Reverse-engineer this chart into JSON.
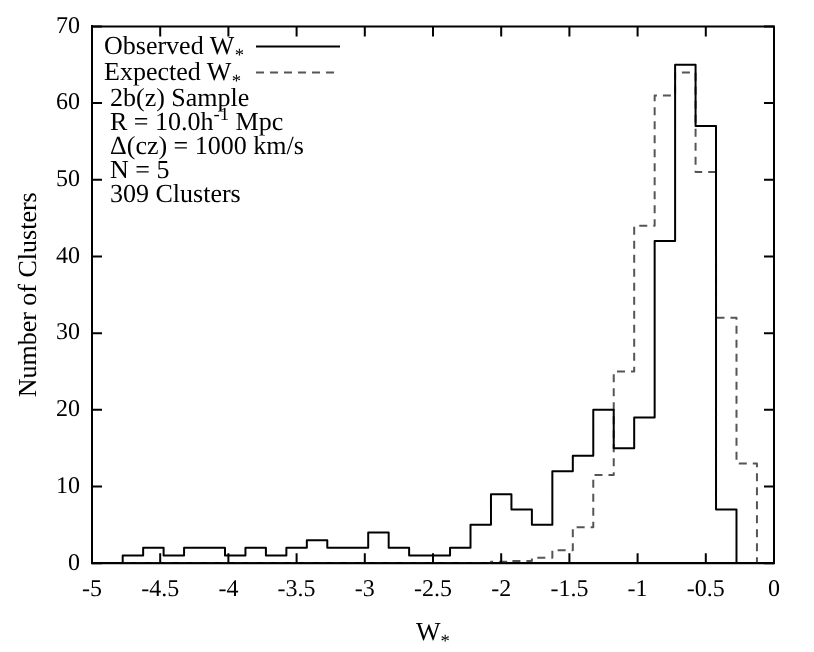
{
  "chart_data": {
    "type": "histogram",
    "xlabel": "W$_{*}$",
    "ylabel": "Number of Clusters",
    "bins": [
      -4.775,
      -4.625,
      -4.475,
      -4.325,
      -4.175,
      -4.025,
      -3.875,
      -3.725,
      -3.575,
      -3.425,
      -3.275,
      -3.125,
      -2.975,
      -2.825,
      -2.675,
      -2.525,
      -2.375,
      -2.225,
      -2.075,
      -1.925,
      -1.775,
      -1.625,
      -1.475,
      -1.325,
      -1.175,
      -1.025,
      -0.875,
      -0.725,
      -0.575,
      -0.425,
      -0.275,
      -0.125
    ],
    "series": [
      {
        "name": "Observed W$_{*}$",
        "color": "#000000",
        "line_style": "solid",
        "values": [
          1,
          2,
          1,
          2,
          2,
          1,
          2,
          1,
          2,
          3,
          2,
          2,
          4,
          2,
          1,
          1,
          2,
          5,
          9,
          7,
          5,
          12,
          14,
          20,
          15,
          19,
          42,
          65,
          57,
          7,
          0
        ]
      },
      {
        "name": "Expected W$_{*}$",
        "color": "#555555",
        "line_style": "dashed",
        "values": [
          0,
          0,
          0,
          0,
          0,
          0,
          0,
          0,
          0,
          0,
          0,
          0,
          0,
          0,
          0,
          0,
          0,
          0,
          0.2,
          0.3,
          0.7,
          1.7,
          4.7,
          11.5,
          25,
          44,
          61,
          64,
          51,
          32,
          13
        ]
      }
    ],
    "xlim": [
      -5,
      0
    ],
    "xticks": [
      -5,
      -4.5,
      -4,
      -3.5,
      -3,
      -2.5,
      -2,
      -1.5,
      -1,
      -0.5,
      0
    ],
    "ylim": [
      0,
      70
    ],
    "yticks": [
      0,
      10,
      20,
      30,
      40,
      50,
      60,
      70
    ],
    "grid": false,
    "legend": "top left",
    "annotations": [
      "2b(z) Sample",
      "R = 10.0h$^{-1}$ Mpc",
      "Δ(cz) = 1000 km/s",
      "N = 5",
      "309 Clusters"
    ]
  }
}
